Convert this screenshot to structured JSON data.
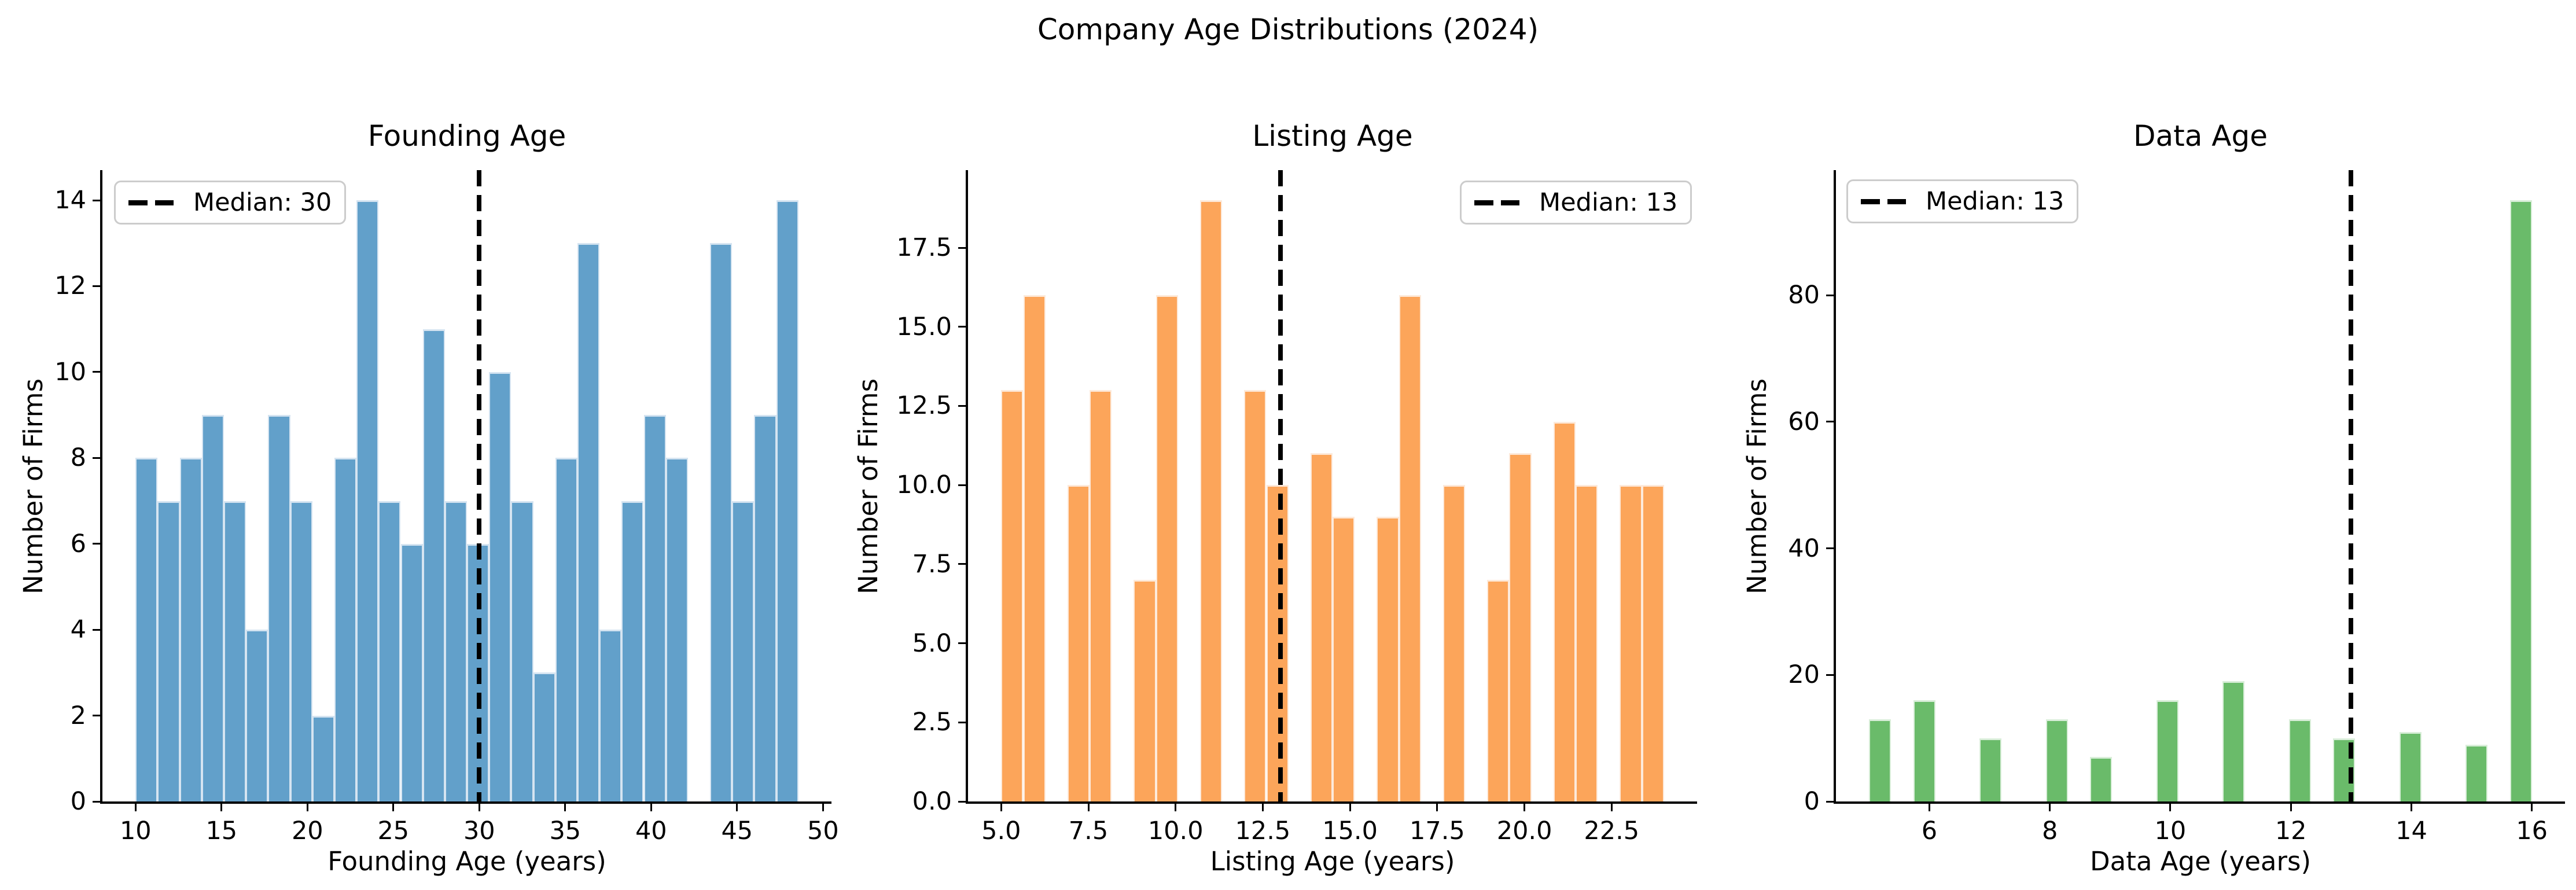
{
  "suptitle": "Company Age Distributions (2024)",
  "chart_data": [
    {
      "type": "bar",
      "subtype": "histogram",
      "title": "Founding Age",
      "xlabel": "Founding Age (years)",
      "ylabel": "Number of Firms",
      "color": "#62a0ca",
      "edge_color": "#d5e4f1",
      "legend": {
        "label": "Median: 30",
        "loc": "upper left"
      },
      "median": 30,
      "bin_start": 10,
      "bin_width": 1.2855,
      "values": [
        8,
        7,
        8,
        9,
        7,
        4,
        9,
        7,
        2,
        8,
        14,
        7,
        6,
        11,
        7,
        6,
        10,
        7,
        3,
        8,
        13,
        4,
        7,
        9,
        8,
        0,
        13,
        7,
        9,
        14
      ],
      "xlim": [
        8.072,
        50.493
      ],
      "ylim": [
        0,
        14.7
      ],
      "xticks": [
        10,
        15,
        20,
        25,
        30,
        35,
        40,
        45,
        50
      ],
      "yticks": [
        0,
        2,
        4,
        6,
        8,
        10,
        12,
        14
      ],
      "xtick_decimals": 0,
      "ytick_decimals": 0,
      "grid": false
    },
    {
      "type": "bar",
      "subtype": "histogram",
      "title": "Listing Age",
      "xlabel": "Listing Age (years)",
      "ylabel": "Number of Firms",
      "color": "#fca55a",
      "edge_color": "#fdeadb",
      "legend": {
        "label": "Median: 13",
        "loc": "upper right"
      },
      "median": 13,
      "bin_start": 5,
      "bin_width": 0.63333,
      "values": [
        13,
        16,
        0,
        10,
        13,
        0,
        7,
        16,
        0,
        19,
        0,
        13,
        10,
        0,
        11,
        9,
        0,
        9,
        16,
        0,
        10,
        0,
        7,
        11,
        0,
        12,
        10,
        0,
        10,
        10
      ],
      "xlim": [
        4.05,
        24.95
      ],
      "ylim": [
        0,
        19.95
      ],
      "xticks": [
        5.0,
        7.5,
        10.0,
        12.5,
        15.0,
        17.5,
        20.0,
        22.5
      ],
      "yticks": [
        0.0,
        2.5,
        5.0,
        7.5,
        10.0,
        12.5,
        15.0,
        17.5
      ],
      "xtick_decimals": 1,
      "ytick_decimals": 1,
      "grid": false
    },
    {
      "type": "bar",
      "subtype": "histogram",
      "title": "Data Age",
      "xlabel": "Data Age (years)",
      "ylabel": "Number of Firms",
      "color": "#6abb6a",
      "edge_color": "#d9eed9",
      "legend": {
        "label": "Median: 13",
        "loc": "upper left"
      },
      "median": 13,
      "bin_start": 5,
      "bin_width": 0.36667,
      "values": [
        13,
        0,
        16,
        0,
        0,
        10,
        0,
        0,
        13,
        0,
        7,
        0,
        0,
        16,
        0,
        0,
        19,
        0,
        0,
        13,
        0,
        10,
        0,
        0,
        11,
        0,
        0,
        9,
        0,
        95
      ],
      "xlim": [
        4.45,
        16.55
      ],
      "ylim": [
        0,
        99.75
      ],
      "xticks": [
        6,
        8,
        10,
        12,
        14,
        16
      ],
      "yticks": [
        0,
        20,
        40,
        60,
        80
      ],
      "xtick_decimals": 0,
      "ytick_decimals": 0,
      "grid": false
    }
  ]
}
